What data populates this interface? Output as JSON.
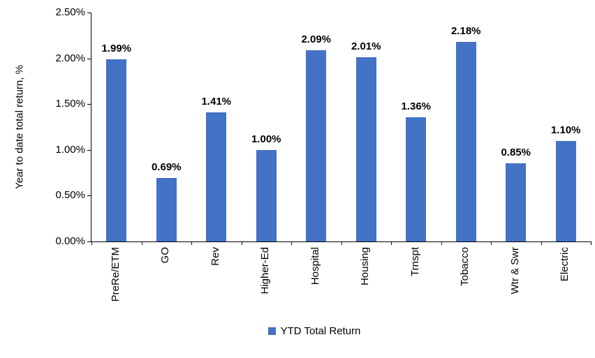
{
  "chart_data": {
    "type": "bar",
    "categories": [
      "PreRe/ETM",
      "GO",
      "Rev",
      "Higher-Ed",
      "Hospital",
      "Housing",
      "Trnspt",
      "Tobacco",
      "Wtr & Swr",
      "Electric"
    ],
    "values": [
      1.99,
      0.69,
      1.41,
      1.0,
      2.09,
      2.01,
      1.36,
      2.18,
      0.85,
      1.1
    ],
    "value_labels": [
      "1.99%",
      "0.69%",
      "1.41%",
      "1.00%",
      "2.09%",
      "2.01%",
      "1.36%",
      "2.18%",
      "0.85%",
      "1.10%"
    ],
    "title": "",
    "xlabel": "",
    "ylabel": "Year to date total return, %",
    "ylim": [
      0,
      2.5
    ],
    "y_ticks": [
      0,
      0.5,
      1.0,
      1.5,
      2.0,
      2.5
    ],
    "y_tick_labels": [
      "0.00%",
      "0.50%",
      "1.00%",
      "1.50%",
      "2.00%",
      "2.50%"
    ],
    "grid": false,
    "legend_position": "bottom",
    "legend": "YTD Total Return",
    "bar_color": "#4472C4"
  }
}
